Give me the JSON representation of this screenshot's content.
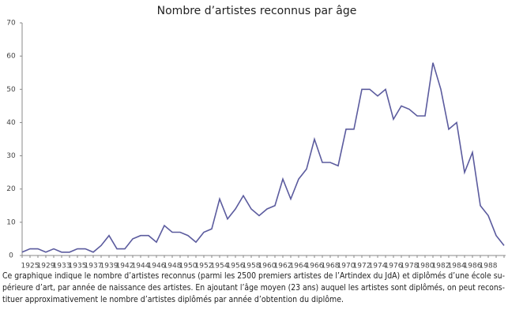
{
  "chart_data": {
    "type": "line",
    "title": "Nombre d’artistes reconnus par âge",
    "categories": [
      null,
      "1925",
      null,
      "1929",
      null,
      "1933",
      null,
      "1935",
      null,
      "1937",
      null,
      "1939",
      null,
      "1942",
      null,
      "1944",
      null,
      "1946",
      null,
      "1948",
      null,
      "1950",
      null,
      "1952",
      null,
      "1954",
      null,
      "1956",
      null,
      "1958",
      null,
      "1960",
      null,
      "1962",
      null,
      "1964",
      null,
      "1966",
      null,
      "1968",
      null,
      "1970",
      null,
      "1972",
      null,
      "1974",
      null,
      "1976",
      null,
      "1978",
      null,
      "1980",
      null,
      "1982",
      null,
      "1984",
      null,
      "1986",
      null,
      "1988",
      null,
      null
    ],
    "values": [
      1,
      2,
      2,
      1,
      2,
      1,
      1,
      2,
      2,
      1,
      3,
      6,
      2,
      2,
      5,
      6,
      6,
      4,
      9,
      7,
      7,
      6,
      4,
      7,
      8,
      17,
      11,
      14,
      18,
      14,
      12,
      14,
      15,
      23,
      17,
      23,
      26,
      35,
      28,
      28,
      27,
      38,
      38,
      50,
      50,
      48,
      50,
      41,
      45,
      44,
      42,
      42,
      58,
      50,
      38,
      40,
      25,
      31,
      15,
      12,
      6,
      3
    ],
    "color": "#5b5b9e",
    "ylim": [
      0,
      70
    ],
    "yticks": [
      0,
      10,
      20,
      30,
      40,
      50,
      60,
      70
    ],
    "grid": false,
    "caption": [
      "Ce graphique indique le nombre d’artistes reconnus (parmi les 2500 premiers artistes de l’Artindex du JdA) et diplômés d’une école su-",
      "périeure d’art, par année de naissance des artistes. En ajoutant l’âge moyen (23 ans) auquel les artistes sont diplômés, on peut recons-",
      "tituer approximativement le nombre d’artistes diplômés par année d’obtention du diplôme."
    ]
  }
}
